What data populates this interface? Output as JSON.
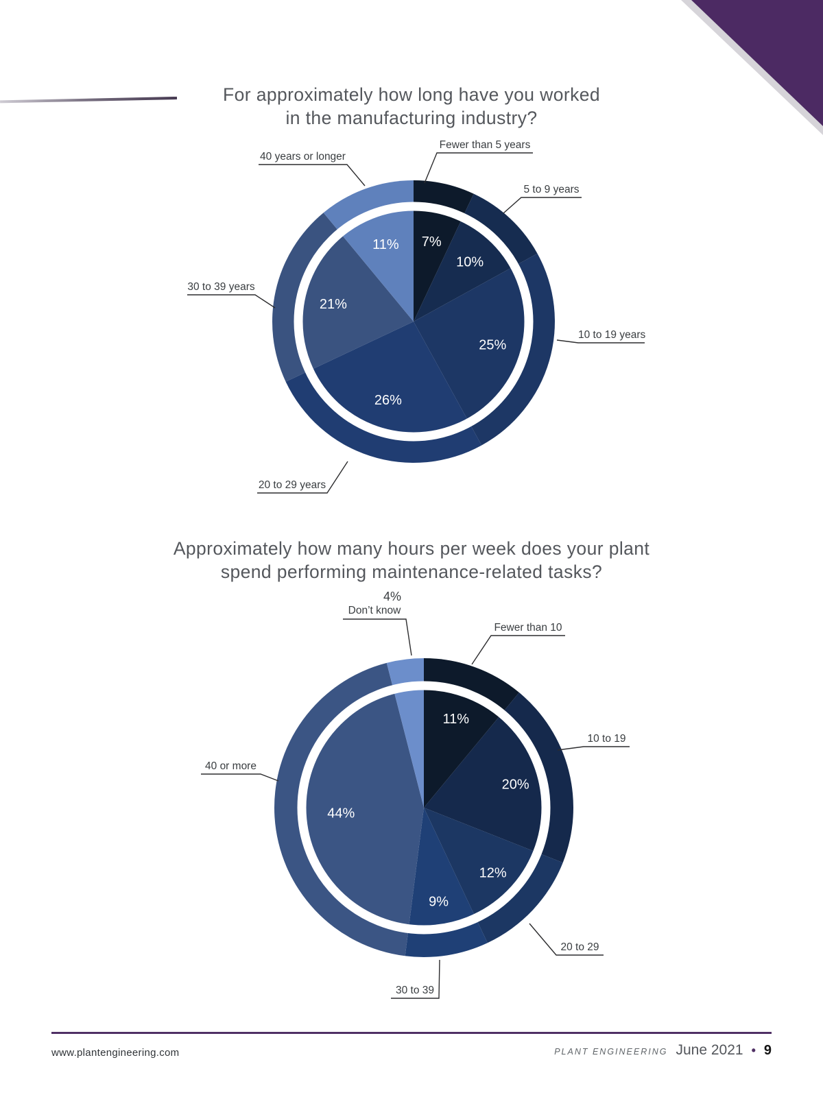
{
  "page": {
    "accent_purple": "#4c2a63",
    "footer": {
      "url": "www.plantengineering.com",
      "brand": "PLANT ENGINEERING",
      "issue": "June 2021",
      "bullet": "•",
      "page_number": "9"
    }
  },
  "chart_data": [
    {
      "type": "pie",
      "donut": true,
      "title_lines": [
        "For approximately how long have you worked",
        "in the manufacturing industry?"
      ],
      "categories": [
        "Fewer than 5 years",
        "5 to 9 years",
        "10 to 19 years",
        "20 to 29 years",
        "30 to 39 years",
        "40 years or longer"
      ],
      "values": [
        7,
        10,
        25,
        26,
        21,
        11
      ],
      "value_labels": [
        "7%",
        "10%",
        "25%",
        "26%",
        "21%",
        "11%"
      ],
      "colors": [
        "#0d1a2b",
        "#162c50",
        "#1d3765",
        "#203d72",
        "#3a5380",
        "#5f81bc"
      ],
      "start_angle_deg": 0,
      "direction": "clockwise",
      "legend": "outside-callout-labels"
    },
    {
      "type": "pie",
      "donut": true,
      "title_lines": [
        "Approximately how many hours per week does your plant",
        "spend performing maintenance-related tasks?"
      ],
      "categories": [
        "Fewer than 10",
        "10 to 19",
        "20 to 29",
        "30 to 39",
        "40 or more",
        "Don’t know"
      ],
      "values": [
        11,
        20,
        12,
        9,
        44,
        4
      ],
      "value_labels": [
        "11%",
        "20%",
        "12%",
        "9%",
        "44%",
        "4%"
      ],
      "colors": [
        "#0d1a2b",
        "#15294c",
        "#1c3763",
        "#1f4076",
        "#3b5584",
        "#6c8ecb"
      ],
      "start_angle_deg": 0,
      "direction": "clockwise",
      "legend": "outside-callout-labels"
    }
  ]
}
